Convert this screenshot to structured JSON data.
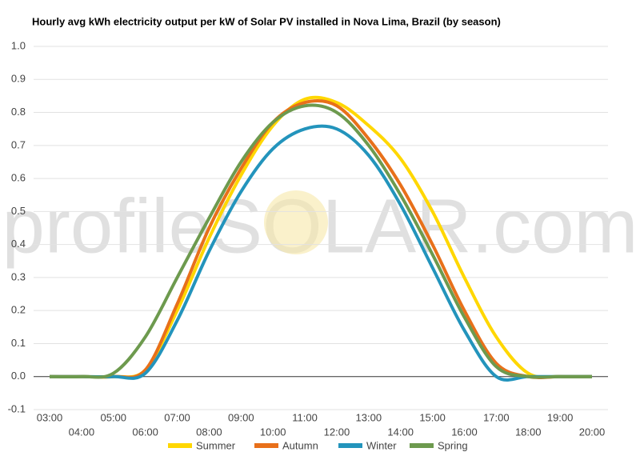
{
  "chart_data": {
    "type": "line",
    "title": "Hourly avg kWh electricity output per kW of Solar PV installed in Nova Lima, Brazil (by season)",
    "watermark": "profileSOLAR.com",
    "categories": [
      "03:00",
      "04:00",
      "05:00",
      "06:00",
      "07:00",
      "08:00",
      "09:00",
      "10:00",
      "11:00",
      "12:00",
      "13:00",
      "14:00",
      "15:00",
      "16:00",
      "17:00",
      "18:00",
      "19:00",
      "20:00"
    ],
    "series": [
      {
        "name": "Summer",
        "color": "#ffd700",
        "values": [
          0,
          0,
          0,
          0.02,
          0.2,
          0.42,
          0.61,
          0.76,
          0.84,
          0.83,
          0.76,
          0.66,
          0.5,
          0.3,
          0.12,
          0.01,
          0,
          0
        ]
      },
      {
        "name": "Autumn",
        "color": "#e8701a",
        "values": [
          0,
          0,
          0,
          0.02,
          0.22,
          0.45,
          0.63,
          0.77,
          0.83,
          0.82,
          0.72,
          0.58,
          0.4,
          0.2,
          0.04,
          0,
          0,
          0
        ]
      },
      {
        "name": "Winter",
        "color": "#2394bc",
        "values": [
          0,
          0,
          0,
          0.01,
          0.17,
          0.38,
          0.56,
          0.69,
          0.75,
          0.75,
          0.67,
          0.52,
          0.33,
          0.14,
          0,
          0,
          0,
          0
        ]
      },
      {
        "name": "Spring",
        "color": "#6d9a4e",
        "values": [
          0,
          0,
          0.01,
          0.12,
          0.3,
          0.48,
          0.65,
          0.77,
          0.82,
          0.8,
          0.7,
          0.55,
          0.37,
          0.18,
          0.03,
          0,
          0,
          0
        ]
      }
    ],
    "ylim": [
      -0.1,
      1.0
    ],
    "yticks": [
      -0.1,
      {
        "value": 0,
        "label": "0.0"
      },
      0.1,
      0.2,
      0.3,
      0.4,
      0.5,
      0.6,
      0.7,
      0.8,
      0.9,
      {
        "value": 1,
        "label": "1.0"
      }
    ],
    "grid": true,
    "legend": "bottom"
  }
}
